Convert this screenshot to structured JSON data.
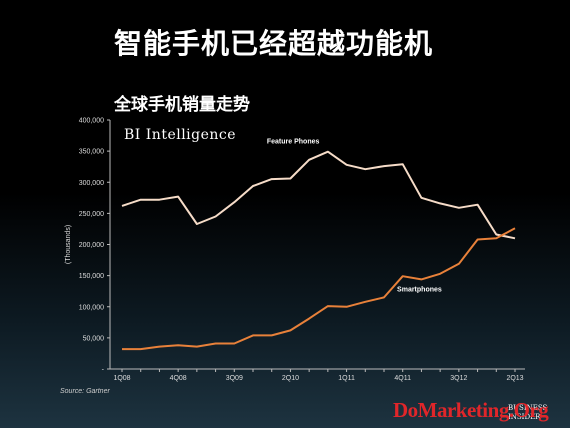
{
  "slide_title": "智能手机已经超越功能机",
  "brand": {
    "logo_text": "BI Intelligence",
    "corner_text_line1": "BUSINESS",
    "corner_text_line2": "INSIDER",
    "watermark": "DoMarketing.Org"
  },
  "source": "Source: Gartner",
  "colors": {
    "feature_phones": "#f6dcc8",
    "smartphones": "#e8813a",
    "watermark": "#e0262a"
  },
  "chart_data": {
    "type": "line",
    "title": "全球手机销量走势",
    "xlabel": "",
    "ylabel": "(Thousands)",
    "ylim": [
      0,
      400000
    ],
    "yticks": [
      0,
      50000,
      100000,
      150000,
      200000,
      250000,
      300000,
      350000,
      400000
    ],
    "ytick_labels": [
      "-",
      "50,000",
      "100,000",
      "150,000",
      "200,000",
      "250,000",
      "300,000",
      "350,000",
      "400,000"
    ],
    "x": [
      "1Q08",
      "2Q08",
      "3Q08",
      "4Q08",
      "1Q09",
      "2Q09",
      "3Q09",
      "4Q09",
      "1Q10",
      "2Q10",
      "3Q10",
      "4Q10",
      "1Q11",
      "2Q11",
      "3Q11",
      "4Q11",
      "1Q12",
      "2Q12",
      "3Q12",
      "4Q12",
      "1Q13",
      "2Q13"
    ],
    "xtick_labels": [
      "1Q08",
      "4Q08",
      "3Q09",
      "2Q10",
      "1Q11",
      "4Q11",
      "3Q12",
      "2Q13"
    ],
    "grid": false,
    "legend": "inline-labels",
    "series": [
      {
        "name": "Feature Phones",
        "values": [
          262000,
          272000,
          272000,
          277000,
          233000,
          245000,
          268000,
          294000,
          305000,
          306000,
          336000,
          349000,
          328000,
          321000,
          326000,
          329000,
          275000,
          266000,
          259000,
          264000,
          216000,
          210000
        ]
      },
      {
        "name": "Smartphones",
        "values": [
          32000,
          32000,
          36000,
          38000,
          36000,
          41000,
          41000,
          54000,
          54000,
          62000,
          81000,
          101000,
          100000,
          108000,
          115000,
          149000,
          144000,
          153000,
          169000,
          208000,
          210000,
          226000
        ]
      }
    ]
  }
}
